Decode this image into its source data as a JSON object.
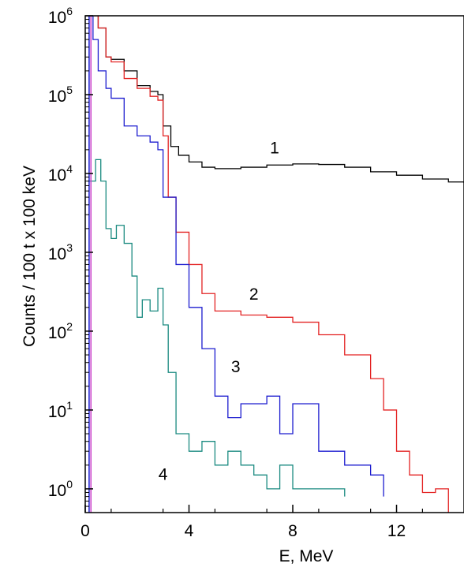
{
  "chart_data": {
    "type": "line",
    "title": "",
    "xlabel": "E, MeV",
    "ylabel": "Counts / 100 t x 100 keV",
    "xlim": [
      0,
      14.6
    ],
    "ylim": [
      0.5,
      1000000
    ],
    "y_scale": "log",
    "grid": false,
    "legend": "none (curves labeled directly with numbers)",
    "x_ticks": [
      0,
      4,
      8,
      12
    ],
    "y_ticks": [
      1,
      10,
      100,
      1000,
      10000,
      100000,
      1000000
    ],
    "y_tick_labels": [
      {
        "base": "10",
        "exp": "0"
      },
      {
        "base": "10",
        "exp": "1"
      },
      {
        "base": "10",
        "exp": "2"
      },
      {
        "base": "10",
        "exp": "3"
      },
      {
        "base": "10",
        "exp": "4"
      },
      {
        "base": "10",
        "exp": "5"
      },
      {
        "base": "10",
        "exp": "6"
      }
    ],
    "series": [
      {
        "name": "1",
        "color": "#000000",
        "step": true,
        "x": [
          0.1,
          0.3,
          0.5,
          0.8,
          1.0,
          1.5,
          2.0,
          2.5,
          2.8,
          3.0,
          3.3,
          3.6,
          4.0,
          4.5,
          5.0,
          6.0,
          7.0,
          8.0,
          9.0,
          10.0,
          11.0,
          12.0,
          13.0,
          14.0,
          14.6
        ],
        "y": [
          1000000,
          1000000,
          700000,
          300000,
          280000,
          200000,
          130000,
          110000,
          100000,
          40000,
          22000,
          17000,
          14000,
          12000,
          11500,
          12000,
          12800,
          13200,
          13000,
          12000,
          10500,
          9500,
          8500,
          7800,
          7600
        ]
      },
      {
        "name": "2",
        "color": "#e32222",
        "step": true,
        "x": [
          0.1,
          0.3,
          0.5,
          0.8,
          1.0,
          1.5,
          2.0,
          2.5,
          2.8,
          3.0,
          3.2,
          3.5,
          4.0,
          4.5,
          5.0,
          6.0,
          7.0,
          8.0,
          9.0,
          10.0,
          11.0,
          11.5,
          12.0,
          12.5,
          13.0,
          13.5,
          14.0
        ],
        "y": [
          1000000,
          1000000,
          700000,
          300000,
          260000,
          160000,
          120000,
          95000,
          85000,
          30000,
          5000,
          1800,
          700,
          300,
          180,
          160,
          150,
          130,
          90,
          50,
          25,
          10,
          3,
          1.5,
          0.9,
          1,
          0.5
        ]
      },
      {
        "name": "3",
        "color": "#1c1ccf",
        "step": true,
        "x": [
          0.1,
          0.3,
          0.5,
          0.8,
          1.0,
          1.5,
          2.0,
          2.5,
          2.8,
          3.0,
          3.5,
          4.0,
          4.5,
          5.0,
          5.5,
          6.0,
          7.0,
          7.5,
          8.0,
          9.0,
          10.0,
          11.0,
          11.5
        ],
        "y": [
          1000000,
          500000,
          200000,
          120000,
          90000,
          40000,
          30000,
          25000,
          20000,
          5000,
          700,
          200,
          60,
          15,
          8,
          12,
          15,
          5,
          12,
          3,
          2,
          1.5,
          0.8
        ]
      },
      {
        "name": "4",
        "color": "#1a8a80",
        "step": true,
        "x": [
          0.1,
          0.4,
          0.6,
          0.8,
          1.0,
          1.2,
          1.5,
          1.8,
          2.0,
          2.2,
          2.5,
          2.8,
          3.0,
          3.2,
          3.5,
          4.0,
          4.5,
          5.0,
          5.5,
          6.0,
          6.5,
          7.0,
          7.5,
          8.0,
          9.0,
          10.0
        ],
        "y": [
          8000,
          15000,
          8000,
          2000,
          1500,
          2200,
          1300,
          500,
          150,
          250,
          180,
          350,
          120,
          30,
          5,
          3,
          4,
          2,
          3,
          2,
          1.5,
          1,
          2,
          1,
          1,
          0.8
        ]
      }
    ],
    "vertical_lines": [
      {
        "x": 0.15,
        "color": "#1c1ccf"
      },
      {
        "x": 0.22,
        "color": "#c83cc8"
      }
    ],
    "curve_labels": [
      {
        "text": "1",
        "x": 7.3,
        "y": 18000
      },
      {
        "text": "2",
        "x": 6.5,
        "y": 250
      },
      {
        "text": "3",
        "x": 5.8,
        "y": 30
      },
      {
        "text": "4",
        "x": 3.0,
        "y": 1.3
      }
    ]
  }
}
